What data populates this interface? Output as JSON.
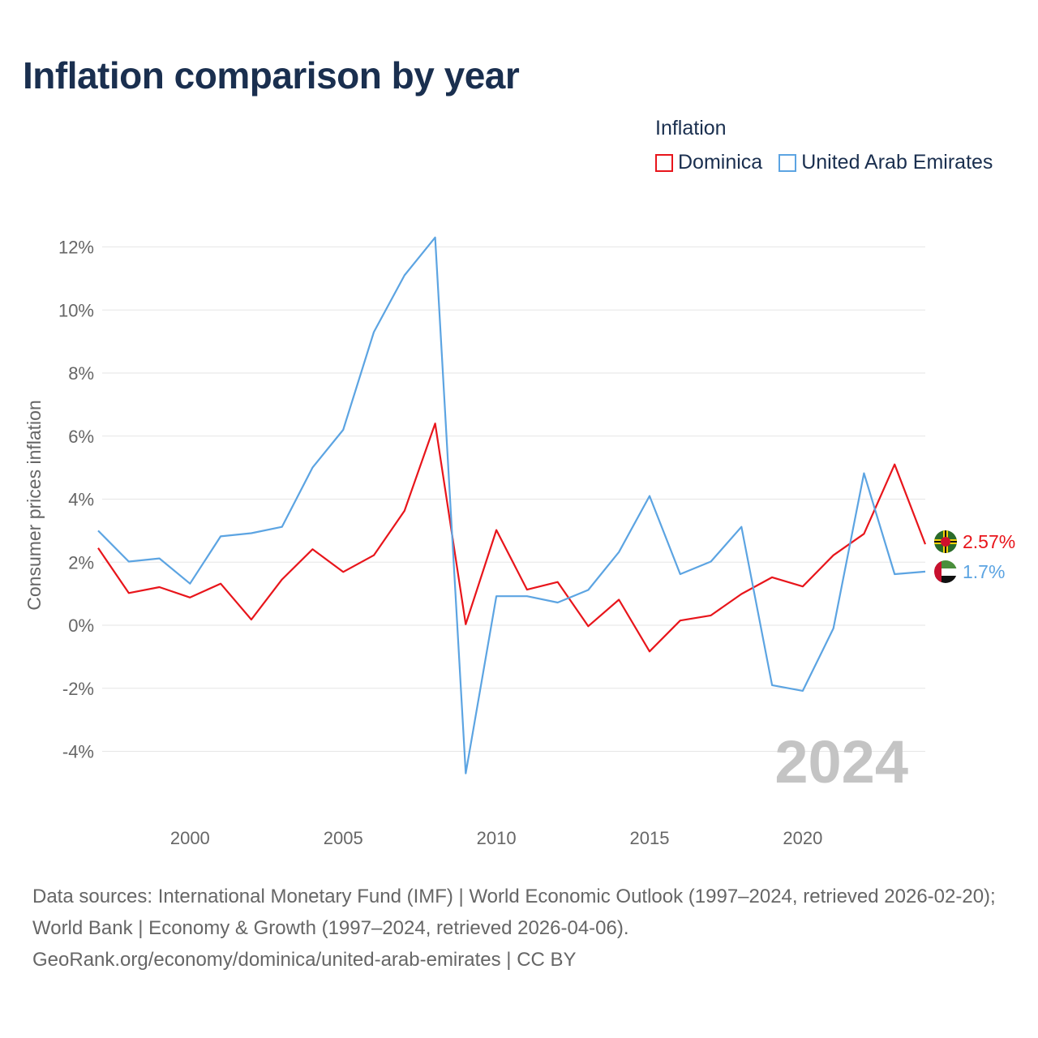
{
  "title": "Inflation comparison by year",
  "legend": {
    "title": "Inflation",
    "items": [
      {
        "label": "Dominica",
        "color": "#e8151b"
      },
      {
        "label": "United Arab Emirates",
        "color": "#5ca4e2"
      }
    ]
  },
  "chart_data": {
    "type": "line",
    "ylabel": "Consumer prices inflation",
    "xlabel": "",
    "ylim": [
      -5,
      12.7
    ],
    "xlim": [
      1997,
      2024
    ],
    "yticks": [
      -4,
      -2,
      0,
      2,
      4,
      6,
      8,
      10,
      12
    ],
    "ytick_labels": [
      "-4%",
      "-2%",
      "0%",
      "2%",
      "4%",
      "6%",
      "8%",
      "10%",
      "12%"
    ],
    "xticks": [
      2000,
      2005,
      2010,
      2015,
      2020
    ],
    "xtick_labels": [
      "2000",
      "2005",
      "2010",
      "2015",
      "2020"
    ],
    "x": [
      1997,
      1998,
      1999,
      2000,
      2001,
      2002,
      2003,
      2004,
      2005,
      2006,
      2007,
      2008,
      2009,
      2010,
      2011,
      2012,
      2013,
      2014,
      2015,
      2016,
      2017,
      2018,
      2019,
      2020,
      2021,
      2022,
      2023,
      2024
    ],
    "series": [
      {
        "name": "Dominica",
        "color": "#e8151b",
        "values": [
          2.45,
          1.02,
          1.21,
          0.88,
          1.32,
          0.18,
          1.45,
          2.41,
          1.69,
          2.22,
          3.63,
          6.4,
          0.03,
          3.02,
          1.13,
          1.37,
          -0.03,
          0.81,
          -0.83,
          0.15,
          0.31,
          0.99,
          1.52,
          1.23,
          2.22,
          2.9,
          5.1,
          2.57
        ],
        "end_label": "2.57%"
      },
      {
        "name": "United Arab Emirates",
        "color": "#5ca4e2",
        "values": [
          3.0,
          2.02,
          2.12,
          1.32,
          2.82,
          2.92,
          3.12,
          5.0,
          6.2,
          9.3,
          11.1,
          12.3,
          -4.7,
          0.92,
          0.92,
          0.72,
          1.12,
          2.32,
          4.1,
          1.62,
          2.02,
          3.12,
          -1.9,
          -2.08,
          -0.1,
          4.82,
          1.62,
          1.7
        ],
        "end_label": "1.7%"
      }
    ],
    "year_watermark": "2024",
    "grid": true,
    "legend_position": "top-right"
  },
  "source": {
    "line1": "Data sources: International Monetary Fund (IMF) | World Economic Outlook (1997–2024, retrieved 2026-02-20); World Bank | Economy & Growth (1997–2024, retrieved 2026-04-06).",
    "line2": "GeoRank.org/economy/dominica/united-arab-emirates | CC BY"
  },
  "colors": {
    "title": "#1a2f4f",
    "axis_text": "#666666",
    "grid": "#e6e6e6",
    "watermark": "#c4c4c4"
  }
}
